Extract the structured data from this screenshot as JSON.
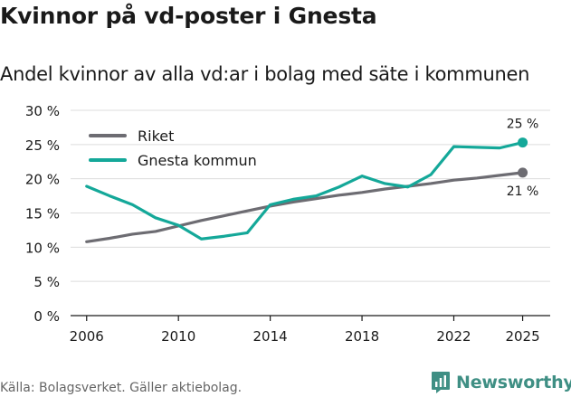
{
  "title": "Kvinnor på vd-poster i Gnesta",
  "subtitle": "Andel kvinnor av alla vd:ar i bolag med säte i kommunen",
  "source": "Källa: Bolagsverket. Gäller aktiebolag.",
  "brand": {
    "name": "Newsworthy",
    "icon": "bar-chart-logo-icon"
  },
  "colors": {
    "riket": "#6d6c72",
    "gnesta": "#14a899",
    "grid": "#dcdcdc",
    "axis": "#1a1a1a",
    "text": "#1a1a1a"
  },
  "chart_data": {
    "type": "line",
    "title": "Kvinnor på vd-poster i Gnesta",
    "subtitle": "Andel kvinnor av alla vd:ar i bolag med säte i kommunen",
    "xlabel": "",
    "ylabel": "",
    "xlim": [
      2005.3,
      2026.2
    ],
    "ylim": [
      0,
      30
    ],
    "yticks": [
      0,
      5,
      10,
      15,
      20,
      25,
      30
    ],
    "ytick_labels": [
      "0 %",
      "5 %",
      "10 %",
      "15 %",
      "20 %",
      "25 %",
      "30 %"
    ],
    "xticks": [
      2006,
      2010,
      2014,
      2018,
      2022,
      2025
    ],
    "xtick_labels": [
      "2006",
      "2010",
      "2014",
      "2018",
      "2022",
      "2025"
    ],
    "grid": true,
    "legend": "top-left",
    "x": [
      2006,
      2007,
      2008,
      2009,
      2010,
      2011,
      2012,
      2013,
      2014,
      2015,
      2016,
      2017,
      2018,
      2019,
      2020,
      2021,
      2022,
      2023,
      2024,
      2025
    ],
    "series": [
      {
        "name": "Riket",
        "color": "#6d6c72",
        "values": [
          10.8,
          11.3,
          11.9,
          12.3,
          13.1,
          13.9,
          14.6,
          15.3,
          16.0,
          16.6,
          17.1,
          17.6,
          18.0,
          18.5,
          18.9,
          19.3,
          19.8,
          20.1,
          20.5,
          20.9
        ],
        "end_label": "21 %",
        "end_label_position": "below"
      },
      {
        "name": "Gnesta kommun",
        "color": "#14a899",
        "values": [
          18.9,
          17.5,
          16.2,
          14.3,
          13.2,
          11.2,
          11.6,
          12.1,
          16.2,
          17.0,
          17.5,
          18.8,
          20.4,
          19.3,
          18.8,
          20.6,
          24.7,
          24.6,
          24.5,
          25.3
        ],
        "end_label": "25 %",
        "end_label_position": "above"
      }
    ]
  }
}
